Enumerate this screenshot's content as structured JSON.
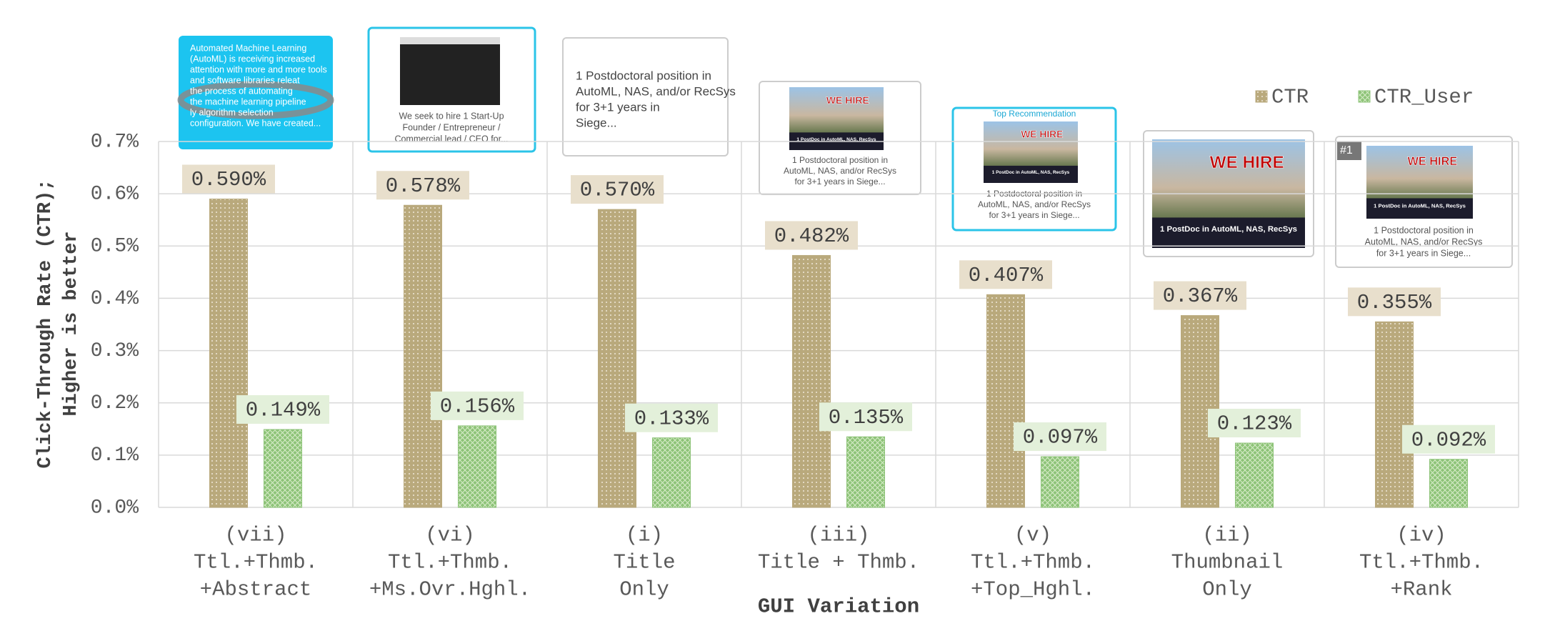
{
  "chart_data": {
    "type": "bar",
    "x_label": "GUI Variation",
    "y_label": [
      "Click-Through Rate (CTR);",
      "Higher is better"
    ],
    "categories": [
      [
        "(vii)",
        "Ttl.+Thmb.",
        "+Abstract"
      ],
      [
        "(vi)",
        "Ttl.+Thmb.",
        "+Ms.Ovr.Hghl."
      ],
      [
        "(i)",
        "Title",
        "Only"
      ],
      [
        "(iii)",
        "Title + Thmb."
      ],
      [
        "(v)",
        "Ttl.+Thmb.",
        "+Top_Hghl."
      ],
      [
        "(ii)",
        "Thumbnail",
        "Only"
      ],
      [
        "(iv)",
        "Ttl.+Thmb.",
        "+Rank"
      ]
    ],
    "series": [
      {
        "name": "CTR",
        "color": "#b9a97c",
        "label_color": "#e8dfcc",
        "values": [
          0.59,
          0.578,
          0.57,
          0.482,
          0.407,
          0.367,
          0.355
        ],
        "value_labels": [
          "0.590%",
          "0.578%",
          "0.570%",
          "0.482%",
          "0.407%",
          "0.367%",
          "0.355%"
        ]
      },
      {
        "name": "CTR_User",
        "color": "#8dc378",
        "label_color": "#e3f0da",
        "values": [
          0.149,
          0.156,
          0.133,
          0.135,
          0.097,
          0.123,
          0.092
        ],
        "value_labels": [
          "0.149%",
          "0.156%",
          "0.133%",
          "0.135%",
          "0.097%",
          "0.123%",
          "0.092%"
        ]
      }
    ],
    "ylim": [
      0,
      0.7
    ],
    "yticks": [
      {
        "value": 0,
        "label": "0.0%"
      },
      {
        "value": 0.1,
        "label": "0.1%"
      },
      {
        "value": 0.2,
        "label": "0.2%"
      },
      {
        "value": 0.3,
        "label": "0.3%"
      },
      {
        "value": 0.4,
        "label": "0.4%"
      },
      {
        "value": 0.5,
        "label": "0.5%"
      },
      {
        "value": 0.6,
        "label": "0.6%"
      },
      {
        "value": 0.7,
        "label": "0.7%"
      }
    ],
    "grid": true,
    "legend": "top-right"
  },
  "thumbnails": [
    {
      "lines": [
        "Automated Machine Learning",
        "(AutoML) is receiving increased",
        "attention with more and more tools",
        "and software libraries releat",
        "the process of automating",
        "the machine learning pipeline",
        "ly algorithm selection",
        "configuration. We have created..."
      ]
    },
    {
      "lines": [
        "We seek to hire 1 Start-Up",
        "Founder / Entrepreneur /",
        "Commercial lead / CEO for..."
      ]
    },
    {
      "lines": [
        "1 Postdoctoral position in",
        "AutoML, NAS, and/or RecSys",
        "for 3+1 years in",
        "Siege..."
      ]
    },
    {
      "hire": "WE HIRE",
      "banner": "1 PostDoc in AutoML, NAS, RecSys",
      "lines": [
        "1 Postdoctoral position in",
        "AutoML, NAS, and/or RecSys",
        "for 3+1 years in Siege..."
      ]
    },
    {
      "badge": "Top Recommendation",
      "hire": "WE HIRE",
      "banner": "1 PostDoc in AutoML, NAS, RecSys",
      "lines": [
        "1 Postdoctoral position in",
        "AutoML, NAS, and/or RecSys",
        "for 3+1 years in Siege..."
      ]
    },
    {
      "hire": "WE HIRE",
      "banner": "1 PostDoc in AutoML, NAS, RecSys"
    },
    {
      "badge": "#1",
      "hire": "WE HIRE",
      "banner": "1 PostDoc in AutoML, NAS, RecSys",
      "lines": [
        "1 Postdoctoral position in",
        "AutoML, NAS, and/or RecSys",
        "for 3+1 years in Siege..."
      ]
    }
  ]
}
